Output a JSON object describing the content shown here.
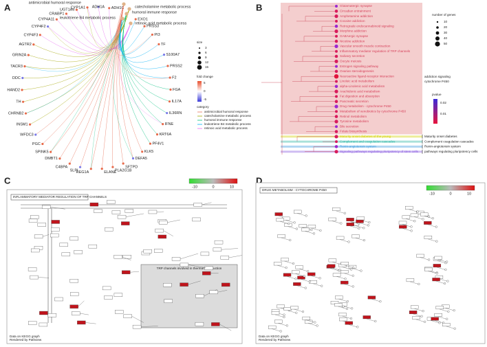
{
  "panels": {
    "a": {
      "label": "A",
      "genes": [
        "ADH1C",
        "ADH1A",
        "CYP1A1",
        "UGT1A6",
        "CRABP1",
        "CYP4A11",
        "CYP4F2",
        "CYP4F3",
        "AGTR2",
        "GRIN2A",
        "TACR3",
        "DDC",
        "HAND2",
        "TH",
        "CHRNB2",
        "INSM1",
        "WFDC3",
        "PGC",
        "SPINK5",
        "DMBT1",
        "C4BPA",
        "SLPI",
        "REG1A",
        "ELANE",
        "PLA2G1B",
        "SFTPD",
        "DEFA5",
        "KLK5",
        "PF4V1",
        "KRT6A",
        "IFNE",
        "IL36RN",
        "IL17A",
        "FGA",
        "F2",
        "PRSS2",
        "S100A7",
        "TF",
        "PI3",
        "PRSS3",
        "EXO1"
      ],
      "categories": [
        {
          "name": "antimicrobial humoral response",
          "color": "#e8735a"
        },
        {
          "name": "catecholamine metabolic process",
          "color": "#a3a500"
        },
        {
          "name": "humoral immune response",
          "color": "#00bf7d"
        },
        {
          "name": "leukotriene B4 metabolic process",
          "color": "#00b0f6"
        },
        {
          "name": "retinoic acid metabolic process",
          "color": "#e76bf3"
        }
      ],
      "size_title": "size",
      "size_ticks": [
        3,
        6,
        9,
        12,
        15
      ],
      "fc_title": "fold change",
      "fc_ticks": [
        5,
        0,
        -5
      ],
      "category_title": "category"
    },
    "b": {
      "label": "B",
      "pathways": [
        "Glutamatergic synapse",
        "Circadian entrainment",
        "Amphetamine addiction",
        "Cocaine addiction",
        "Retrograde endocannabinoid signaling",
        "Morphine addiction",
        "GABAergic synapse",
        "Nicotine addiction",
        "Vascular smooth muscle contraction",
        "Inflammatory mediator regulation of TRP channels",
        "Salivary secretion",
        "Oocyte meiosis",
        "Estrogen signaling pathway",
        "Ovarian steroidogenesis",
        "Neuroactive ligand-receptor interaction",
        "Linoleic acid metabolism",
        "alpha-Linolenic acid metabolism",
        "Arachidonic acid metabolism",
        "Fat digestion and absorption",
        "Pancreatic secretion",
        "Drug metabolism - cytochrome P450",
        "Metabolism of xenobiotics by cytochrome P450",
        "Retinol metabolism",
        "Tyrosine metabolism",
        "Bile secretion",
        "Folate biosynthesis",
        "Maturity onset diabetes of the young",
        "Complement and coagulation cascades",
        "Renin-angiotensin system",
        "Signaling pathways regulating pluripotency of stem cells"
      ],
      "clusters": [
        "addiction signaling",
        "cytochrome P450",
        "Maturity onset diabetes",
        "Complement coagulation cascades",
        "Renin-angiotensin system",
        "pathways regulating pluripotency cells"
      ],
      "count_title": "number of genes",
      "count_ticks": [
        10,
        20,
        30,
        40,
        50
      ],
      "p_title": "pvalue",
      "p_ticks": [
        0.02,
        0.01
      ]
    },
    "c": {
      "label": "C",
      "title": "INFLAMMATORY MEDIATOR REGULATION OF TRP CHANNELS",
      "scale_ticks": [
        -10,
        0,
        10
      ],
      "box_title": "TRP channels involved in thermal transduction",
      "footer": [
        "Data on KEGG graph",
        "Rendered by Pathview"
      ]
    },
    "d": {
      "label": "D",
      "title": "DRUG METABOLISM - CYTOCHROME P450",
      "scale_ticks": [
        -10,
        0,
        10
      ],
      "footer": [
        "Data on KEGG graph",
        "Rendered by Pathview"
      ]
    }
  }
}
